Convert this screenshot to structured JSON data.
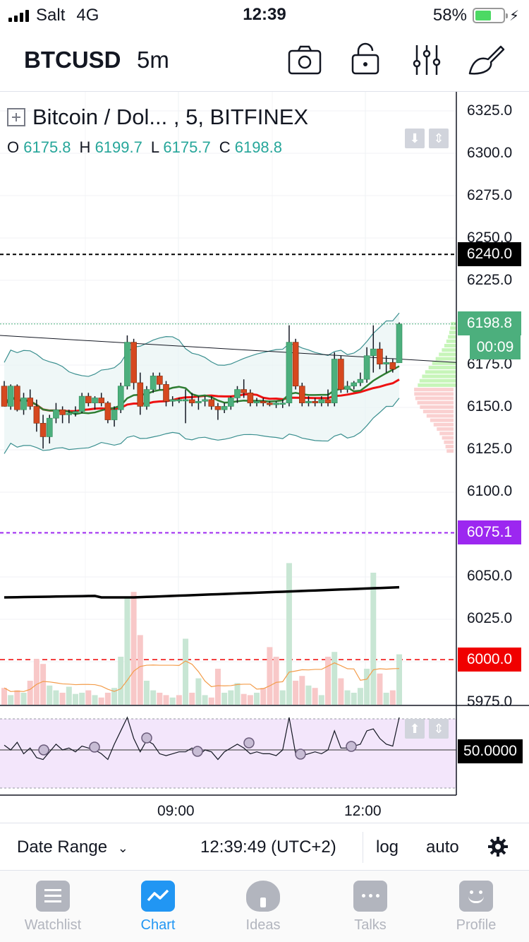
{
  "status_bar": {
    "carrier": "Salt",
    "network": "4G",
    "time": "12:39",
    "battery": "58%",
    "battery_level": 0.58
  },
  "header": {
    "symbol": "BTCUSD",
    "interval": "5m",
    "icons": [
      "camera-icon",
      "lock-icon",
      "indicators-icon",
      "drawing-tools-icon"
    ]
  },
  "legend": {
    "title": "Bitcoin / Dol... , 5, BITFINEX",
    "open_label": "O",
    "open": "6175.8",
    "high_label": "H",
    "high": "6199.7",
    "low_label": "L",
    "low": "6175.7",
    "close_label": "C",
    "close": "6198.8"
  },
  "price_axis": {
    "ticks": [
      "6325.0",
      "6300.0",
      "6275.0",
      "6250.0",
      "6225.0",
      "6175.0",
      "6150.0",
      "6125.0",
      "6100.0",
      "6050.0",
      "6025.0",
      "5975.0"
    ],
    "labels": [
      {
        "text": "6240.0",
        "color": "#000000"
      },
      {
        "text": "6198.8",
        "color": "#4caf7d"
      },
      {
        "text": "00:09",
        "color": "#4caf7d"
      },
      {
        "text": "6075.1",
        "color": "#9c27f0"
      },
      {
        "text": "6000.0",
        "color": "#f00000"
      }
    ]
  },
  "rsi": {
    "level_label": "50.0000"
  },
  "time_axis": {
    "ticks": [
      "09:00",
      "12:00"
    ]
  },
  "controls": {
    "date_range": "Date Range",
    "clock": "12:39:49 (UTC+2)",
    "log": "log",
    "auto": "auto"
  },
  "tabs": [
    {
      "label": "Watchlist",
      "active": false
    },
    {
      "label": "Chart",
      "active": true
    },
    {
      "label": "Ideas",
      "active": false
    },
    {
      "label": "Talks",
      "active": false
    },
    {
      "label": "Profile",
      "active": false
    }
  ],
  "colors": {
    "up": "#4caf7d",
    "down": "#d6481f",
    "accent": "#2196f3",
    "rsi_bg": "#f3e6fb"
  },
  "chart_data": {
    "type": "candlestick",
    "y_range": [
      5970,
      6330
    ],
    "candles": [
      [
        6162,
        6165,
        6150,
        6150
      ],
      [
        6150,
        6163,
        6148,
        6162
      ],
      [
        6162,
        6163,
        6147,
        6148
      ],
      [
        6148,
        6158,
        6145,
        6155
      ],
      [
        6155,
        6160,
        6148,
        6150
      ],
      [
        6150,
        6154,
        6135,
        6140
      ],
      [
        6140,
        6145,
        6125,
        6132
      ],
      [
        6132,
        6145,
        6128,
        6143
      ],
      [
        6143,
        6152,
        6140,
        6148
      ],
      [
        6148,
        6150,
        6140,
        6145
      ],
      [
        6145,
        6148,
        6140,
        6146
      ],
      [
        6146,
        6150,
        6144,
        6147
      ],
      [
        6147,
        6158,
        6146,
        6156
      ],
      [
        6156,
        6158,
        6150,
        6152
      ],
      [
        6152,
        6156,
        6148,
        6155
      ],
      [
        6155,
        6158,
        6150,
        6152
      ],
      [
        6152,
        6153,
        6140,
        6142
      ],
      [
        6142,
        6150,
        6138,
        6148
      ],
      [
        6148,
        6164,
        6146,
        6162
      ],
      [
        6162,
        6192,
        6160,
        6188
      ],
      [
        6188,
        6190,
        6160,
        6164
      ],
      [
        6164,
        6170,
        6145,
        6150
      ],
      [
        6150,
        6162,
        6148,
        6160
      ],
      [
        6160,
        6170,
        6158,
        6168
      ],
      [
        6168,
        6170,
        6160,
        6163
      ],
      [
        6163,
        6165,
        6150,
        6153
      ],
      [
        6153,
        6156,
        6150,
        6154
      ],
      [
        6154,
        6155,
        6152,
        6154
      ],
      [
        6154,
        6160,
        6140,
        6154
      ],
      [
        6154,
        6158,
        6150,
        6152
      ],
      [
        6152,
        6156,
        6148,
        6153
      ],
      [
        6153,
        6156,
        6150,
        6154
      ],
      [
        6154,
        6156,
        6148,
        6150
      ],
      [
        6150,
        6152,
        6142,
        6148
      ],
      [
        6148,
        6152,
        6146,
        6150
      ],
      [
        6150,
        6156,
        6148,
        6155
      ],
      [
        6155,
        6162,
        6152,
        6160
      ],
      [
        6160,
        6166,
        6155,
        6158
      ],
      [
        6158,
        6160,
        6150,
        6152
      ],
      [
        6152,
        6155,
        6150,
        6153
      ],
      [
        6153,
        6155,
        6150,
        6152
      ],
      [
        6152,
        6153,
        6150,
        6151
      ],
      [
        6151,
        6153,
        6149,
        6152
      ],
      [
        6152,
        6154,
        6149,
        6152
      ],
      [
        6152,
        6198,
        6150,
        6188
      ],
      [
        6188,
        6190,
        6160,
        6162
      ],
      [
        6162,
        6164,
        6150,
        6152
      ],
      [
        6152,
        6156,
        6150,
        6153
      ],
      [
        6153,
        6155,
        6150,
        6152
      ],
      [
        6152,
        6156,
        6150,
        6154
      ],
      [
        6154,
        6160,
        6150,
        6152
      ],
      [
        6152,
        6182,
        6150,
        6178
      ],
      [
        6178,
        6180,
        6158,
        6160
      ],
      [
        6160,
        6165,
        6158,
        6162
      ],
      [
        6162,
        6165,
        6160,
        6164
      ],
      [
        6164,
        6170,
        6162,
        6166
      ],
      [
        6166,
        6185,
        6164,
        6180
      ],
      [
        6180,
        6198,
        6170,
        6184
      ],
      [
        6184,
        6188,
        6172,
        6175
      ],
      [
        6175,
        6180,
        6170,
        6176
      ],
      [
        6176,
        6178,
        6170,
        6172
      ],
      [
        6175.8,
        6199.7,
        6175.7,
        6198.8
      ]
    ],
    "volume": [
      14,
      8,
      12,
      10,
      20,
      38,
      34,
      16,
      12,
      10,
      15,
      9,
      10,
      12,
      8,
      6,
      10,
      14,
      40,
      90,
      94,
      58,
      20,
      12,
      10,
      8,
      6,
      8,
      55,
      10,
      22,
      8,
      6,
      30,
      10,
      12,
      18,
      9,
      8,
      10,
      14,
      48,
      40,
      12,
      118,
      20,
      24,
      16,
      14,
      8,
      40,
      44,
      22,
      12,
      10,
      14,
      30,
      110,
      26,
      10,
      12,
      42
    ],
    "volume_up": [
      0,
      1,
      0,
      1,
      0,
      0,
      0,
      1,
      1,
      0,
      1,
      1,
      1,
      0,
      1,
      0,
      0,
      1,
      1,
      1,
      0,
      0,
      1,
      1,
      0,
      0,
      1,
      0,
      1,
      0,
      1,
      1,
      0,
      0,
      1,
      1,
      1,
      0,
      0,
      1,
      0,
      0,
      0,
      1,
      1,
      0,
      0,
      1,
      0,
      1,
      0,
      1,
      0,
      1,
      1,
      1,
      1,
      1,
      0,
      1,
      0,
      1
    ],
    "rsi": [
      55,
      50,
      58,
      46,
      52,
      42,
      40,
      48,
      56,
      50,
      52,
      48,
      54,
      52,
      50,
      46,
      40,
      56,
      70,
      84,
      62,
      48,
      60,
      56,
      46,
      44,
      46,
      48,
      48,
      52,
      44,
      50,
      48,
      40,
      48,
      52,
      56,
      52,
      46,
      48,
      46,
      46,
      44,
      50,
      84,
      46,
      44,
      46,
      48,
      46,
      50,
      70,
      52,
      52,
      54,
      56,
      70,
      72,
      62,
      56,
      54,
      84
    ],
    "time_ticks": [
      "09:00",
      "12:00"
    ],
    "horizontal_levels": [
      6240.0,
      6075.1,
      6000.0
    ]
  }
}
